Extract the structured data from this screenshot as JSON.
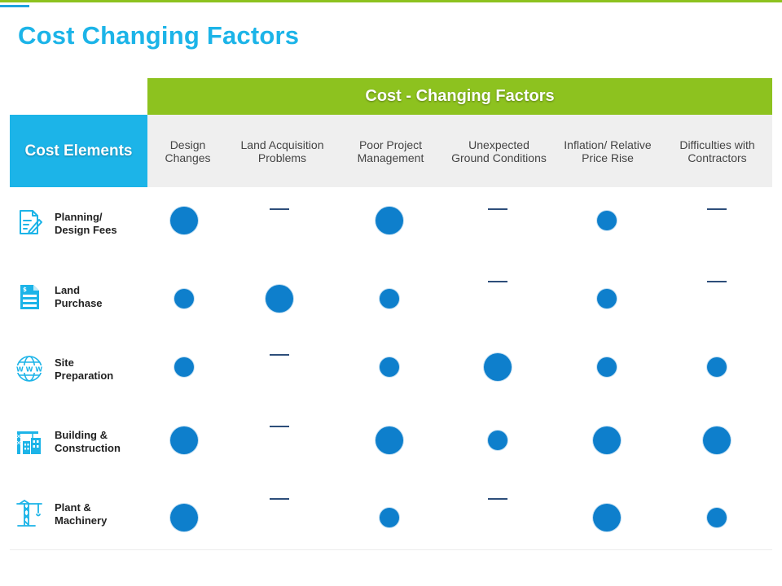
{
  "page": {
    "title": "Cost Changing Factors"
  },
  "table": {
    "group_header": "Cost - Changing Factors",
    "corner_label": "Cost Elements",
    "columns": [
      {
        "line1": "Design",
        "line2": "Changes"
      },
      {
        "line1": "Land Acquisition",
        "line2": "Problems"
      },
      {
        "line1": "Poor Project",
        "line2": "Management"
      },
      {
        "line1": "Unexpected",
        "line2": "Ground Conditions"
      },
      {
        "line1": "Inflation/ Relative",
        "line2": "Price Rise"
      },
      {
        "line1": "Difficulties with",
        "line2": "Contractors"
      }
    ],
    "rows": [
      {
        "line1": "Planning/",
        "line2": "Design Fees",
        "icon": "document-pen-icon",
        "impacts": [
          "large",
          "none",
          "large",
          "none",
          "small",
          "none"
        ]
      },
      {
        "line1": "Land",
        "line2": "Purchase",
        "icon": "price-document-icon",
        "impacts": [
          "small",
          "large",
          "small",
          "none",
          "small",
          "none"
        ]
      },
      {
        "line1": "Site",
        "line2": "Preparation",
        "icon": "globe-www-icon",
        "impacts": [
          "small",
          "none",
          "small",
          "large",
          "small",
          "small"
        ]
      },
      {
        "line1": "Building &",
        "line2": "Construction",
        "icon": "crane-building-icon",
        "impacts": [
          "large",
          "none",
          "large",
          "small",
          "large",
          "large"
        ]
      },
      {
        "line1": "Plant &",
        "line2": "Machinery",
        "icon": "tower-crane-icon",
        "impacts": [
          "large",
          "none",
          "small",
          "none",
          "large",
          "small"
        ]
      }
    ]
  },
  "colors": {
    "title": "#1cb4e8",
    "group_header_bg": "#8dc21f",
    "corner_bg": "#1cb4e8",
    "dot": "#0e7fcc",
    "dash": "#2d4e7a"
  }
}
